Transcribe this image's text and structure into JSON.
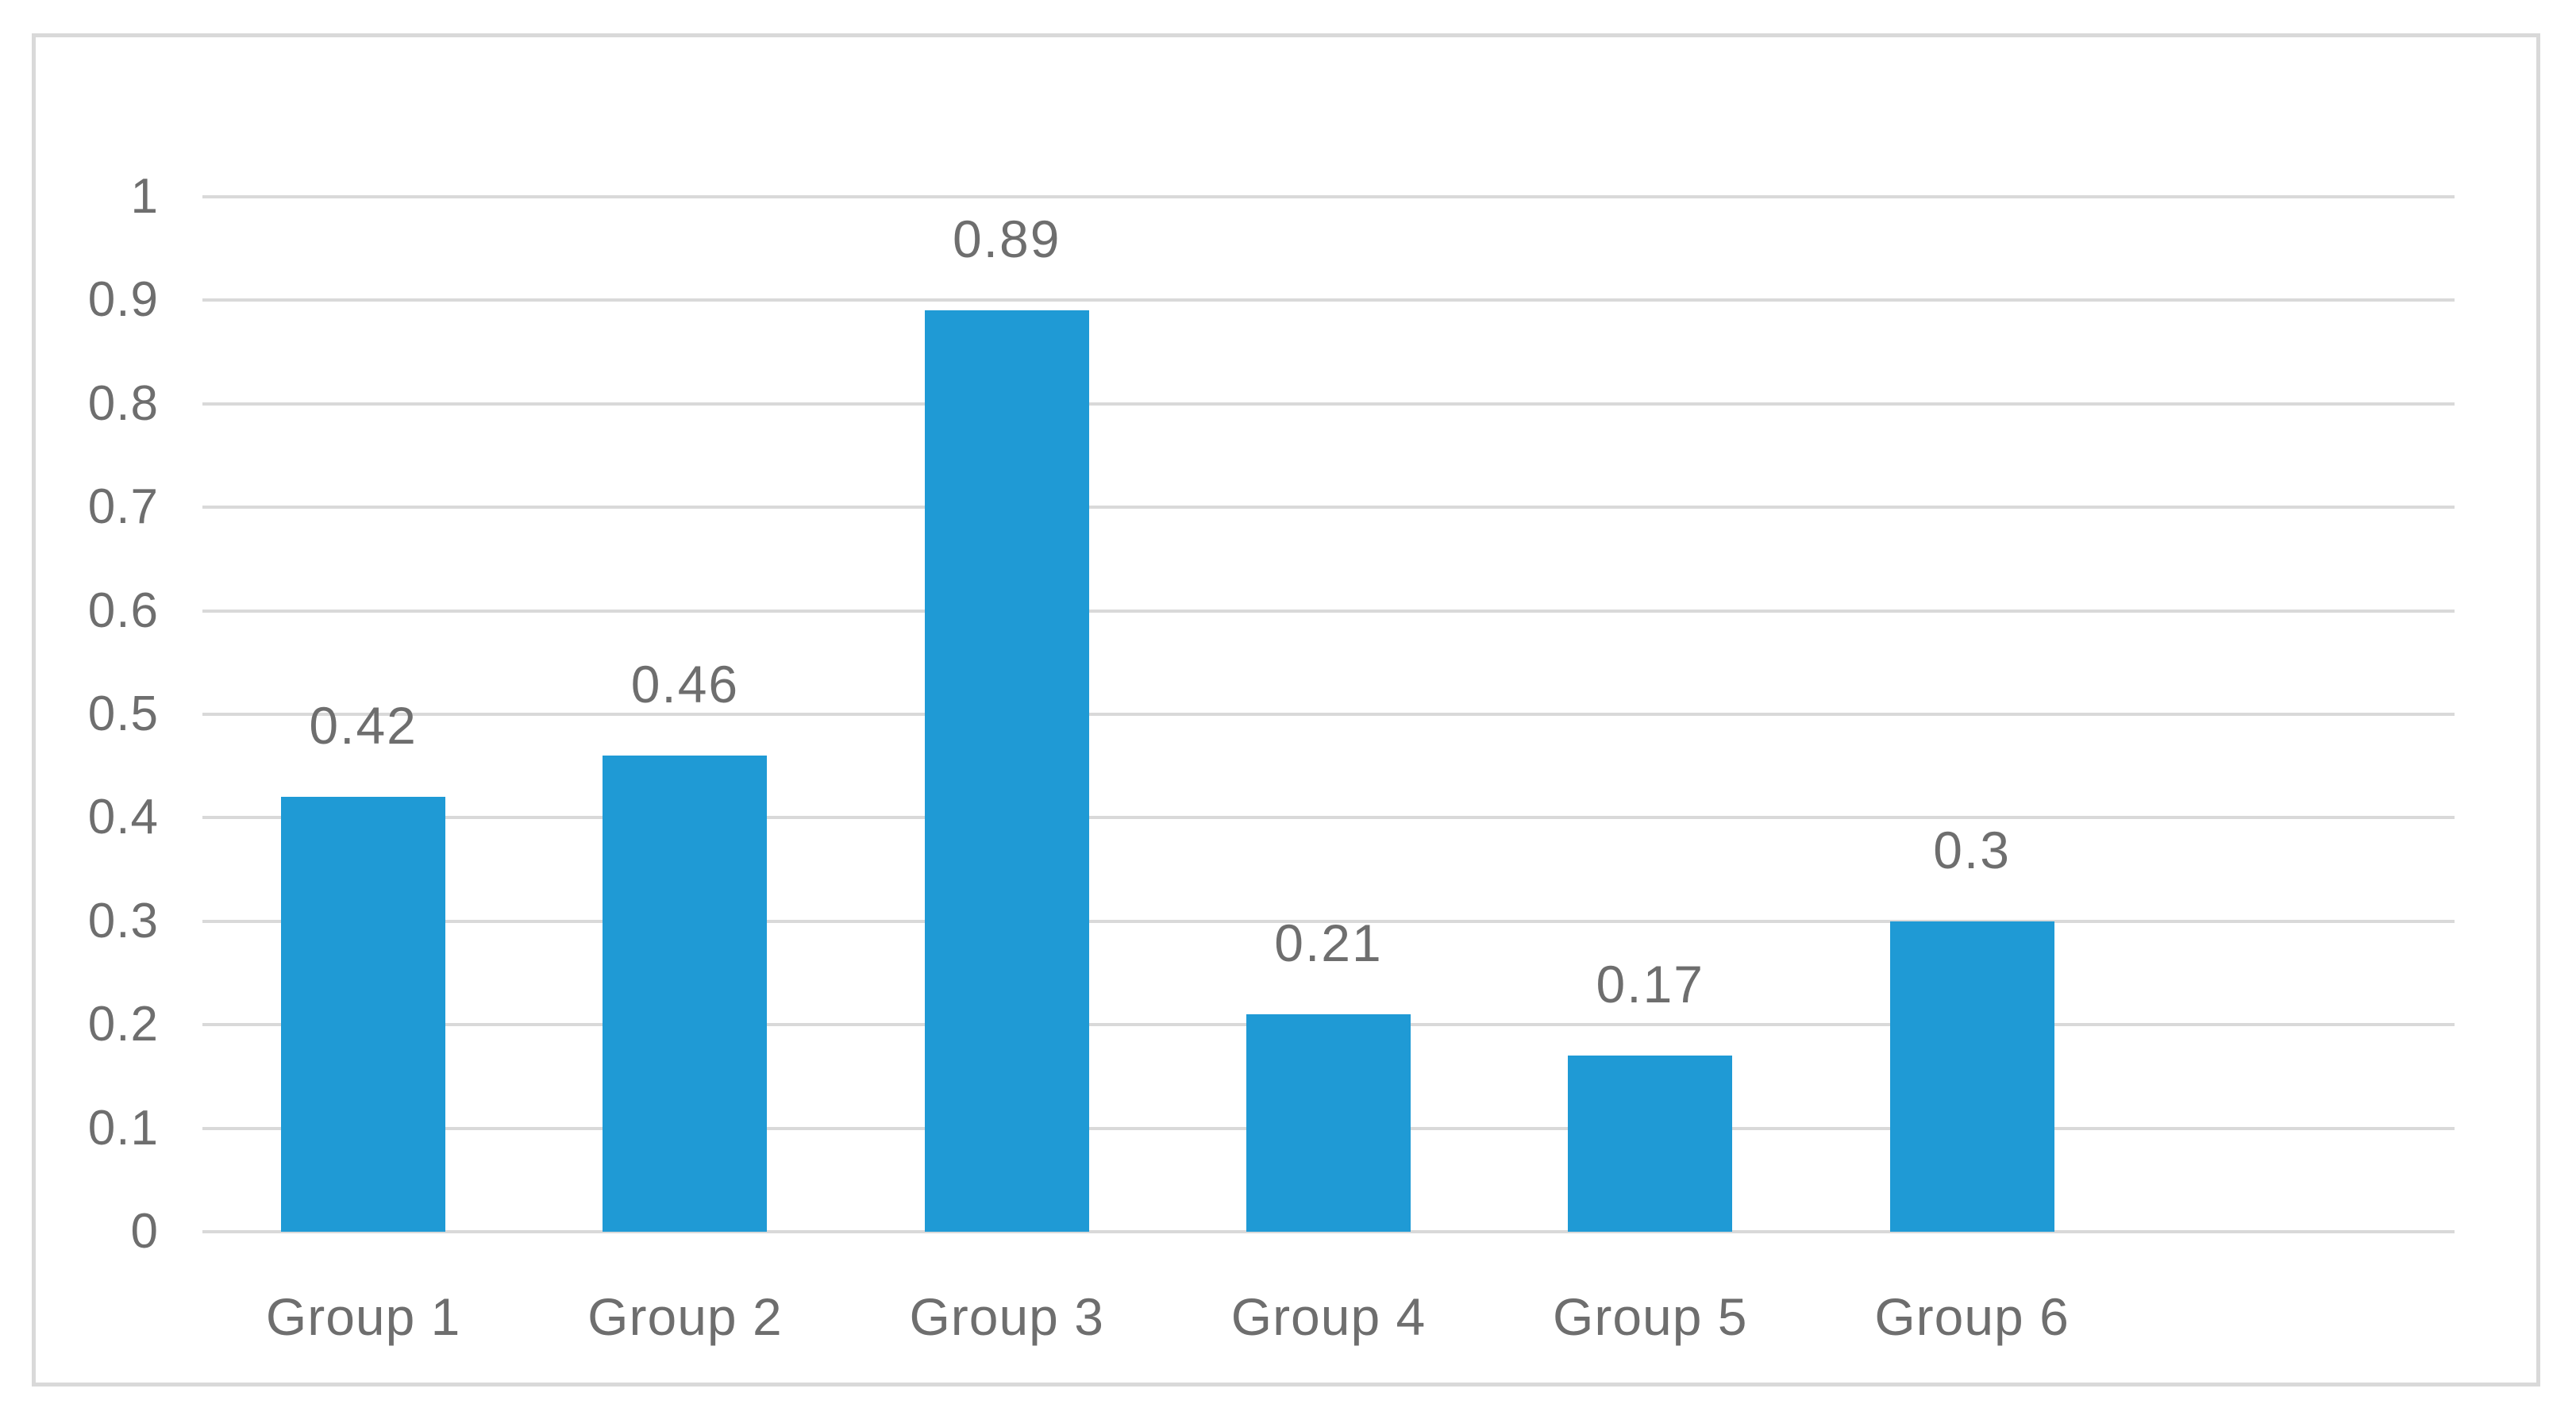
{
  "chart_data": {
    "type": "bar",
    "title": "",
    "xlabel": "",
    "ylabel": "",
    "categories": [
      "Group 1",
      "Group 2",
      "Group 3",
      "Group 4",
      "Group 5",
      "Group 6"
    ],
    "values": [
      0.42,
      0.46,
      0.89,
      0.21,
      0.17,
      0.3
    ],
    "value_labels": [
      "0.42",
      "0.46",
      "0.89",
      "0.21",
      "0.17",
      "0.3"
    ],
    "ylim": [
      0,
      1
    ],
    "y_ticks": [
      "0",
      "0.1",
      "0.2",
      "0.3",
      "0.4",
      "0.5",
      "0.6",
      "0.7",
      "0.8",
      "0.9",
      "1"
    ],
    "grid": true,
    "legend": false,
    "x_slots": 7,
    "colors": {
      "bar": "#1f9ad5",
      "gridline": "#d9d9d9",
      "frame_border": "#d9d9d9",
      "text": "#6e6e6e",
      "background": "#ffffff"
    }
  }
}
